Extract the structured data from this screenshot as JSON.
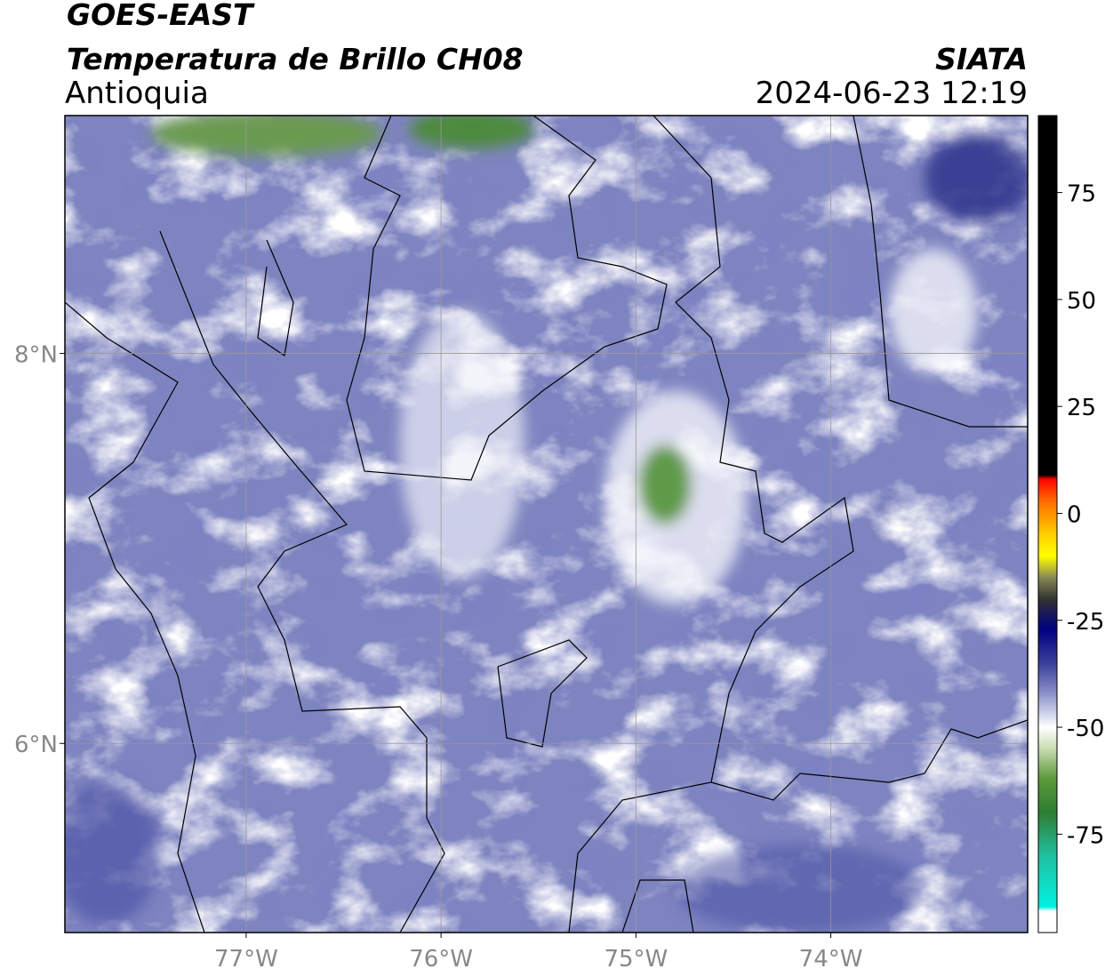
{
  "header": {
    "title": "GOES-EAST",
    "subtitle": "Temperatura de Brillo CH08",
    "region": "Antioquia",
    "source": "SIATA",
    "datetime": "2024-06-23 12:19"
  },
  "map": {
    "xlim": [
      -77.93,
      -72.99
    ],
    "ylim": [
      5.03,
      9.22
    ],
    "xticks": [
      {
        "value": -77,
        "label": "77°W"
      },
      {
        "value": -76,
        "label": "76°W"
      },
      {
        "value": -75,
        "label": "75°W"
      },
      {
        "value": -74,
        "label": "74°W"
      }
    ],
    "yticks": [
      {
        "value": 8,
        "label": "8°N"
      },
      {
        "value": 6,
        "label": "6°N"
      }
    ],
    "grid": true
  },
  "colorbar": {
    "lim": [
      -98,
      93
    ],
    "ticks": [
      75,
      50,
      25,
      0,
      -25,
      -50,
      -75
    ],
    "stops": [
      {
        "value": 93,
        "color": "#000000"
      },
      {
        "value": 9,
        "color": "#000000"
      },
      {
        "value": 8,
        "color": "#ff0000"
      },
      {
        "value": 3,
        "color": "#ff6a00"
      },
      {
        "value": -5,
        "color": "#ffd000"
      },
      {
        "value": -10,
        "color": "#ffff00"
      },
      {
        "value": -15,
        "color": "#888855"
      },
      {
        "value": -20,
        "color": "#333333"
      },
      {
        "value": -27,
        "color": "#000080"
      },
      {
        "value": -35,
        "color": "#3a3f9a"
      },
      {
        "value": -42,
        "color": "#8a8fc8"
      },
      {
        "value": -50,
        "color": "#ffffff"
      },
      {
        "value": -55,
        "color": "#c8dcb0"
      },
      {
        "value": -62,
        "color": "#5a9a3a"
      },
      {
        "value": -70,
        "color": "#2e7d32"
      },
      {
        "value": -80,
        "color": "#20c0a0"
      },
      {
        "value": -92,
        "color": "#00f0e0"
      },
      {
        "value": -93,
        "color": "#ffffff"
      },
      {
        "value": -98,
        "color": "#ffffff"
      }
    ]
  }
}
